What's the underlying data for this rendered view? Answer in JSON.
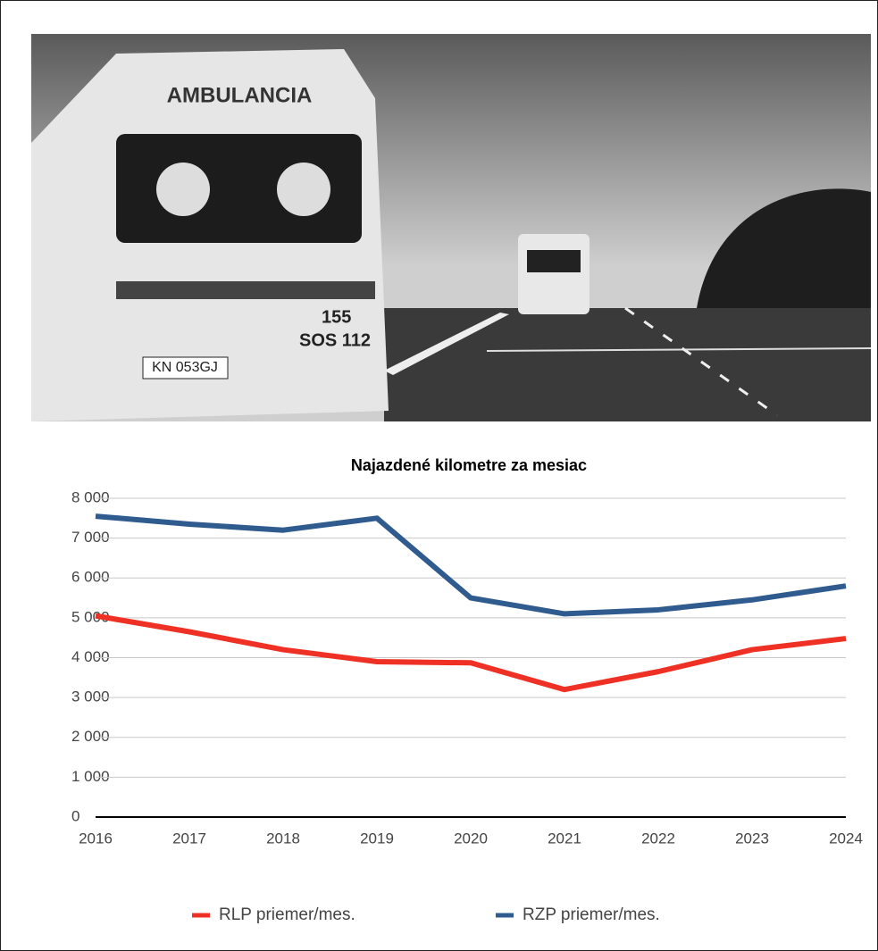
{
  "photo": {
    "texts": [
      "AMBULANCIA",
      "155",
      "SOS 112",
      "KN 053GJ"
    ]
  },
  "chart_data": {
    "type": "line",
    "title": "Najazdené kilometre za mesiac",
    "categories": [
      "2016",
      "2017",
      "2018",
      "2019",
      "2020",
      "2021",
      "2022",
      "2023",
      "2024"
    ],
    "series": [
      {
        "name": "RLP priemer/mes.",
        "color": "#ee3124",
        "values": [
          5050,
          4650,
          4200,
          3900,
          3870,
          3200,
          3650,
          4200,
          4480
        ]
      },
      {
        "name": "RZP priemer/mes.",
        "color": "#2f5b8e",
        "values": [
          7550,
          7350,
          7200,
          7500,
          5500,
          5100,
          5200,
          5450,
          5800
        ]
      }
    ],
    "ylim": [
      0,
      8000
    ],
    "yticks": [
      0,
      {
        "value": 1000,
        "label": "1 000"
      },
      {
        "value": 2000,
        "label": "2 000"
      },
      {
        "value": 3000,
        "label": "3 000"
      },
      {
        "value": 4000,
        "label": "4 000"
      },
      {
        "value": 5000,
        "label": "5 000"
      },
      {
        "value": 6000,
        "label": "6 000"
      },
      {
        "value": 7000,
        "label": "7 000"
      },
      {
        "value": 8000,
        "label": "8 000"
      }
    ],
    "grid": true,
    "legend": "bottom"
  }
}
